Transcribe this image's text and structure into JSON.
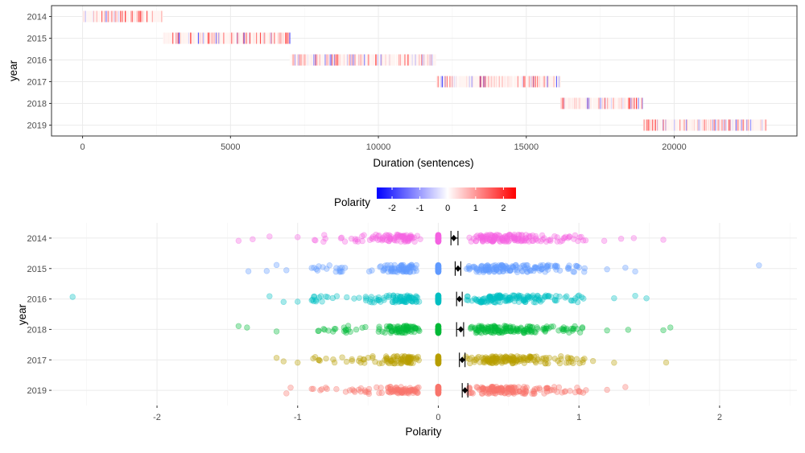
{
  "chart_data": [
    {
      "type": "heatmap",
      "title": "",
      "xlabel": "Duration (sentences)",
      "ylabel": "year",
      "xlim": [
        -1050,
        24150
      ],
      "x_ticks": [
        0,
        5000,
        10000,
        15000,
        20000
      ],
      "x_tick_labels": [
        "0",
        "5000",
        "10000",
        "15000",
        "20000"
      ],
      "categories": [
        "2014",
        "2015",
        "2016",
        "2017",
        "2018",
        "2019"
      ],
      "series": [
        {
          "name": "2014",
          "start": 0,
          "end": 2720
        },
        {
          "name": "2015",
          "start": 2720,
          "end": 7000
        },
        {
          "name": "2016",
          "start": 7000,
          "end": 11950
        },
        {
          "name": "2017",
          "start": 11950,
          "end": 16150
        },
        {
          "name": "2018",
          "start": 16150,
          "end": 18950
        },
        {
          "name": "2019",
          "start": 18950,
          "end": 23100
        }
      ],
      "fill_variable": "Polarity",
      "fill_scale": {
        "low": "#0000ff",
        "mid": "#ffffff",
        "high": "#ff0000",
        "limits": [
          -2.6,
          2.3
        ]
      }
    },
    {
      "type": "scatter",
      "title": "",
      "xlabel": "Polarity",
      "ylabel": "year",
      "xlim": [
        -2.75,
        2.55
      ],
      "x_ticks": [
        -2,
        -1,
        0,
        1,
        2
      ],
      "x_tick_labels": [
        "-2",
        "-1",
        "0",
        "1",
        "2"
      ],
      "categories": [
        "2014",
        "2015",
        "2016",
        "2018",
        "2017",
        "2019"
      ],
      "legend": {
        "title": "Polarity",
        "position": "top",
        "ticks": [
          -2,
          -1,
          0,
          1,
          2
        ],
        "tick_labels": [
          "-2",
          "-1",
          "0",
          "1",
          "2"
        ],
        "low": "#0000ff",
        "mid": "#ffffff",
        "high": "#ff0000",
        "limits": [
          -2.55,
          2.45
        ]
      },
      "series": [
        {
          "name": "2014",
          "color": "#f564e3",
          "mean": 0.11,
          "ci": [
            0.09,
            0.14
          ],
          "min": -1.42,
          "max": 1.6,
          "extremes": [
            -1.42,
            -1.32,
            -1.2,
            -1.0,
            -0.88,
            1.18,
            1.3,
            1.39,
            1.6
          ]
        },
        {
          "name": "2015",
          "color": "#619cff",
          "mean": 0.14,
          "ci": [
            0.12,
            0.16
          ],
          "min": -1.35,
          "max": 2.28,
          "extremes": [
            -1.35,
            -1.22,
            -1.15,
            -1.08,
            -0.9,
            1.2,
            1.33,
            1.4,
            2.28
          ]
        },
        {
          "name": "2016",
          "color": "#00bfc4",
          "mean": 0.15,
          "ci": [
            0.13,
            0.17
          ],
          "min": -2.6,
          "max": 1.5,
          "extremes": [
            -2.6,
            -1.2,
            -1.1,
            -1.0,
            -0.9,
            1.25,
            1.4,
            1.48
          ]
        },
        {
          "name": "2018",
          "color": "#00ba38",
          "mean": 0.16,
          "ci": [
            0.13,
            0.18
          ],
          "min": -1.42,
          "max": 1.65,
          "extremes": [
            -1.42,
            -1.36,
            -1.15,
            -0.85,
            1.2,
            1.35,
            1.6,
            1.65
          ]
        },
        {
          "name": "2017",
          "color": "#b79f00",
          "mean": 0.17,
          "ci": [
            0.15,
            0.19
          ],
          "min": -1.15,
          "max": 1.62,
          "extremes": [
            -1.15,
            -1.1,
            -1.0,
            -0.85,
            1.1,
            1.25,
            1.62
          ]
        },
        {
          "name": "2019",
          "color": "#f8766d",
          "mean": 0.19,
          "ci": [
            0.17,
            0.21
          ],
          "min": -1.08,
          "max": 1.33,
          "extremes": [
            -1.08,
            -1.05,
            -0.9,
            -0.8,
            1.05,
            1.2,
            1.33
          ]
        }
      ]
    }
  ]
}
